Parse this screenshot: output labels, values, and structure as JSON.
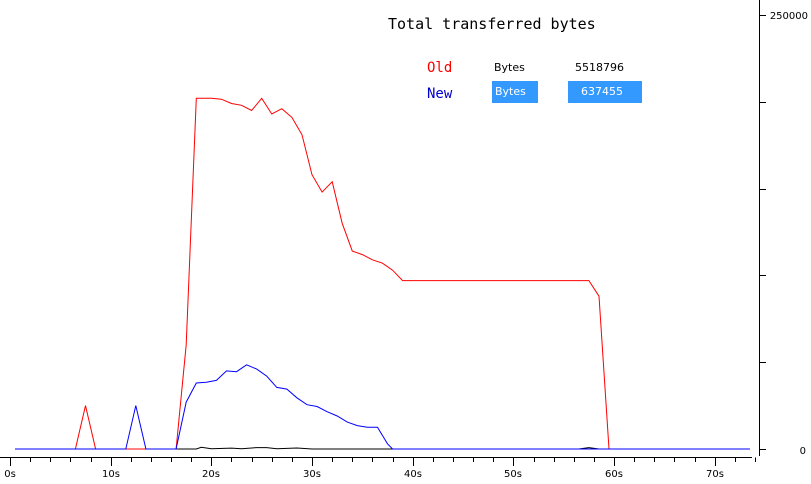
{
  "chart_data": {
    "type": "line",
    "title": "Total transferred bytes",
    "xlabel": "",
    "ylabel": "",
    "xlim": [
      0,
      74
    ],
    "ylim": [
      0,
      250000
    ],
    "x_ticks": [
      "0s",
      "10s",
      "20s",
      "30s",
      "40s",
      "50s",
      "60s",
      "70s"
    ],
    "y_ticks": [
      "250000",
      "0"
    ],
    "legend": {
      "placement": "top-right"
    },
    "grid": false,
    "series": [
      {
        "name": "Old",
        "color": "#ff0000",
        "unit": "Bytes",
        "total": "5518796",
        "points": [
          [
            0.5,
            0
          ],
          [
            6.5,
            0
          ],
          [
            7.5,
            25000
          ],
          [
            8.5,
            0
          ],
          [
            16.5,
            0
          ],
          [
            17.5,
            60000
          ],
          [
            18.5,
            202000
          ],
          [
            20,
            202000
          ],
          [
            21,
            201500
          ],
          [
            22,
            199000
          ],
          [
            23,
            198000
          ],
          [
            24,
            195000
          ],
          [
            25,
            202000
          ],
          [
            26,
            193000
          ],
          [
            27,
            196000
          ],
          [
            28,
            191000
          ],
          [
            29,
            181000
          ],
          [
            30,
            158000
          ],
          [
            31,
            148000
          ],
          [
            32,
            154000
          ],
          [
            33,
            130000
          ],
          [
            34,
            114000
          ],
          [
            35,
            112000
          ],
          [
            36,
            109000
          ],
          [
            37,
            107000
          ],
          [
            38,
            103000
          ],
          [
            39,
            97000
          ],
          [
            57.5,
            97000
          ],
          [
            58.5,
            88000
          ],
          [
            59.5,
            0
          ],
          [
            73.5,
            0
          ]
        ]
      },
      {
        "name": "New",
        "color": "#0000ff",
        "unit": "Bytes",
        "total": "637455",
        "selected": true,
        "points": [
          [
            0.5,
            0
          ],
          [
            11.5,
            0
          ],
          [
            12.5,
            25000
          ],
          [
            13.5,
            0
          ],
          [
            16.5,
            0
          ],
          [
            17.5,
            27000
          ],
          [
            18.5,
            38000
          ],
          [
            19.5,
            38500
          ],
          [
            20.5,
            39500
          ],
          [
            21.5,
            45000
          ],
          [
            22.5,
            44500
          ],
          [
            23.5,
            48500
          ],
          [
            24.5,
            46000
          ],
          [
            25.5,
            42000
          ],
          [
            26.5,
            35500
          ],
          [
            27.5,
            34500
          ],
          [
            28.5,
            29500
          ],
          [
            29.5,
            25500
          ],
          [
            30.5,
            24500
          ],
          [
            31.5,
            21500
          ],
          [
            32.5,
            19000
          ],
          [
            33.5,
            15500
          ],
          [
            34.5,
            13500
          ],
          [
            35.5,
            12500
          ],
          [
            36.5,
            12500
          ],
          [
            37.5,
            3000
          ],
          [
            38,
            0
          ],
          [
            73.5,
            0
          ]
        ]
      },
      {
        "name": "",
        "color": "#000000",
        "points": [
          [
            0.5,
            0
          ],
          [
            18.5,
            0
          ],
          [
            19,
            1000
          ],
          [
            20,
            200
          ],
          [
            22,
            500
          ],
          [
            23,
            200
          ],
          [
            24.5,
            800
          ],
          [
            25.5,
            800
          ],
          [
            26.5,
            200
          ],
          [
            28.5,
            600
          ],
          [
            30,
            0
          ],
          [
            56.5,
            0
          ],
          [
            57.5,
            800
          ],
          [
            58.5,
            0
          ],
          [
            73.5,
            0
          ]
        ]
      }
    ]
  }
}
